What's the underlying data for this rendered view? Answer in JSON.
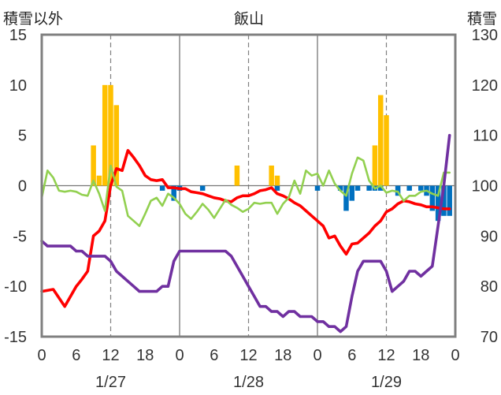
{
  "chart_data": {
    "type": "bar+line",
    "title": "飯山",
    "ylabel_left": "積雪以外",
    "ylabel_right": "積雪",
    "ylim_left": [
      -15,
      15
    ],
    "ylim_right": [
      70,
      130
    ],
    "yticks_left": [
      "15",
      "10",
      "5",
      "0",
      "-5",
      "-10",
      "-15"
    ],
    "yticks_right": [
      "130",
      "120",
      "110",
      "100",
      "90",
      "80",
      "70"
    ],
    "x_hours": [
      0,
      72
    ],
    "xticks": [
      "0",
      "6",
      "12",
      "18",
      "0",
      "6",
      "12",
      "18",
      "0",
      "6",
      "12",
      "18",
      "0"
    ],
    "days": [
      "1/27",
      "1/28",
      "1/29"
    ],
    "grid": "dashed vertical every 12h, solid day separators",
    "colors": {
      "snowfall": "#ffc000",
      "snow_change": "#0070c0",
      "temp": "#ff0000",
      "green": "#92d050",
      "depth": "#7030a0",
      "frame": "#808080"
    },
    "snowfall_bars": [
      {
        "x": 9,
        "v": 4
      },
      {
        "x": 10,
        "v": 1
      },
      {
        "x": 11,
        "v": 10
      },
      {
        "x": 12,
        "v": 10
      },
      {
        "x": 13,
        "v": 8
      },
      {
        "x": 34,
        "v": 2
      },
      {
        "x": 40,
        "v": 2
      },
      {
        "x": 41,
        "v": 1
      },
      {
        "x": 58,
        "v": 4
      },
      {
        "x": 59,
        "v": 9
      },
      {
        "x": 60,
        "v": 7
      }
    ],
    "snow_change_bars": [
      {
        "x": 21,
        "v": -0.5
      },
      {
        "x": 23,
        "v": -1.5
      },
      {
        "x": 24,
        "v": -0.5
      },
      {
        "x": 28,
        "v": -0.5
      },
      {
        "x": 41,
        "v": -0.5
      },
      {
        "x": 48,
        "v": -0.5
      },
      {
        "x": 52,
        "v": -0.5
      },
      {
        "x": 53,
        "v": -2.5
      },
      {
        "x": 54,
        "v": -1.5
      },
      {
        "x": 55,
        "v": -0.5
      },
      {
        "x": 57,
        "v": -0.5
      },
      {
        "x": 58,
        "v": -0.5
      },
      {
        "x": 59,
        "v": -0.5
      },
      {
        "x": 62,
        "v": -1
      },
      {
        "x": 64,
        "v": -0.5
      },
      {
        "x": 66,
        "v": -0.5
      },
      {
        "x": 67,
        "v": -1
      },
      {
        "x": 68,
        "v": -2.5
      },
      {
        "x": 69,
        "v": -3.5
      },
      {
        "x": 70,
        "v": -3
      },
      {
        "x": 71,
        "v": -3
      }
    ],
    "series": [
      {
        "key": "temp",
        "axis": "left",
        "x": [
          0,
          2,
          4,
          6,
          7,
          8,
          9,
          10,
          11,
          12,
          13,
          14,
          15,
          16,
          17,
          18,
          19,
          20,
          21,
          22,
          23,
          24,
          25,
          26,
          27,
          28,
          29,
          30,
          31,
          32,
          33,
          34,
          35,
          36,
          37,
          38,
          39,
          40,
          41,
          42,
          43,
          44,
          45,
          46,
          47,
          48,
          49,
          50,
          51,
          52,
          53,
          54,
          55,
          56,
          57,
          58,
          59,
          60,
          61,
          62,
          63,
          64,
          65,
          66,
          67,
          68,
          69,
          70,
          71
        ],
        "y": [
          -10.5,
          -10.3,
          -12,
          -10,
          -9.3,
          -8.5,
          -5,
          -4.5,
          -3.5,
          0,
          1.7,
          1.5,
          3.5,
          2.8,
          2,
          1,
          0.6,
          0.5,
          0.6,
          -0.2,
          -0.2,
          -0.3,
          -0.3,
          -0.6,
          -0.7,
          -0.8,
          -1,
          -1.2,
          -1.3,
          -1.5,
          -1.6,
          -1.2,
          -1,
          -1,
          -0.8,
          -0.5,
          -0.4,
          -0.2,
          -0.8,
          -1,
          -1.3,
          -1.7,
          -2,
          -2.5,
          -3,
          -3.5,
          -4,
          -5.2,
          -5,
          -6,
          -6.8,
          -5.8,
          -5.7,
          -5.2,
          -4.7,
          -4,
          -3.5,
          -2.6,
          -2.3,
          -1.8,
          -1.5,
          -1.6,
          -1.8,
          -1.9,
          -2.1,
          -2.1,
          -2.2,
          -2.3,
          -2.3
        ]
      },
      {
        "key": "green",
        "axis": "left",
        "x": [
          0,
          1,
          2,
          3,
          4,
          5,
          6,
          7,
          8,
          9,
          10,
          11,
          12,
          13,
          14,
          15,
          16,
          17,
          18,
          19,
          20,
          21,
          22,
          23,
          24,
          25,
          26,
          27,
          28,
          29,
          30,
          31,
          32,
          33,
          34,
          35,
          36,
          37,
          38,
          39,
          40,
          41,
          42,
          43,
          44,
          45,
          46,
          47,
          48,
          49,
          50,
          51,
          52,
          53,
          54,
          55,
          56,
          57,
          58,
          59,
          60,
          61,
          62,
          63,
          64,
          65,
          66,
          67,
          68,
          69,
          70,
          71
        ],
        "y": [
          -1.2,
          1.5,
          0.8,
          -0.5,
          -0.6,
          -0.5,
          -0.6,
          -0.9,
          -1,
          0.5,
          -0.8,
          -2.5,
          2,
          -0.1,
          -0.5,
          -3,
          -3.5,
          -4,
          -2.8,
          -1.5,
          -1.2,
          -2,
          -0.8,
          -1.2,
          -1.8,
          -2.8,
          -3.3,
          -2.6,
          -1.8,
          -2.4,
          -3.2,
          -2.3,
          -1.4,
          -1.9,
          -2.2,
          -2.6,
          -2.3,
          -1.7,
          -1.8,
          -1.7,
          -1.7,
          -2.8,
          -1.8,
          -1.2,
          0.5,
          -0.8,
          1.5,
          1,
          1.2,
          0,
          1.5,
          0.2,
          -0.5,
          -1,
          1.2,
          2.8,
          2.5,
          0.5,
          -0.3,
          0,
          -0.7,
          -0.5,
          -0.6,
          -1.5,
          -1,
          -1,
          -0.6,
          -0.5,
          -0.8,
          -1,
          1.3,
          1.3
        ]
      },
      {
        "key": "depth",
        "axis": "right",
        "x": [
          0,
          1,
          2,
          3,
          4,
          5,
          6,
          7,
          8,
          9,
          10,
          11,
          12,
          13,
          14,
          15,
          16,
          17,
          18,
          19,
          20,
          21,
          22,
          23,
          24,
          25,
          26,
          27,
          28,
          29,
          30,
          31,
          32,
          33,
          34,
          35,
          36,
          37,
          38,
          39,
          40,
          41,
          42,
          43,
          44,
          45,
          46,
          47,
          48,
          49,
          50,
          51,
          52,
          53,
          54,
          55,
          56,
          57,
          58,
          59,
          60,
          61,
          62,
          63,
          64,
          65,
          66,
          67,
          68,
          69,
          70,
          71
        ],
        "y": [
          89,
          88,
          88,
          88,
          88,
          88,
          87,
          87,
          86,
          86,
          86,
          86,
          85,
          83,
          82,
          81,
          80,
          79,
          79,
          79,
          79,
          80,
          80,
          85,
          87,
          87,
          87,
          87,
          87,
          87,
          87,
          87,
          87,
          86,
          84,
          82,
          80,
          78,
          76,
          76,
          75,
          75,
          74,
          75,
          75,
          74,
          74,
          74,
          73,
          73,
          72,
          72,
          71,
          72,
          78,
          83,
          85,
          85,
          85,
          85,
          83,
          79,
          80,
          81,
          83,
          83,
          82,
          83,
          84,
          92,
          100,
          110
        ]
      }
    ]
  }
}
